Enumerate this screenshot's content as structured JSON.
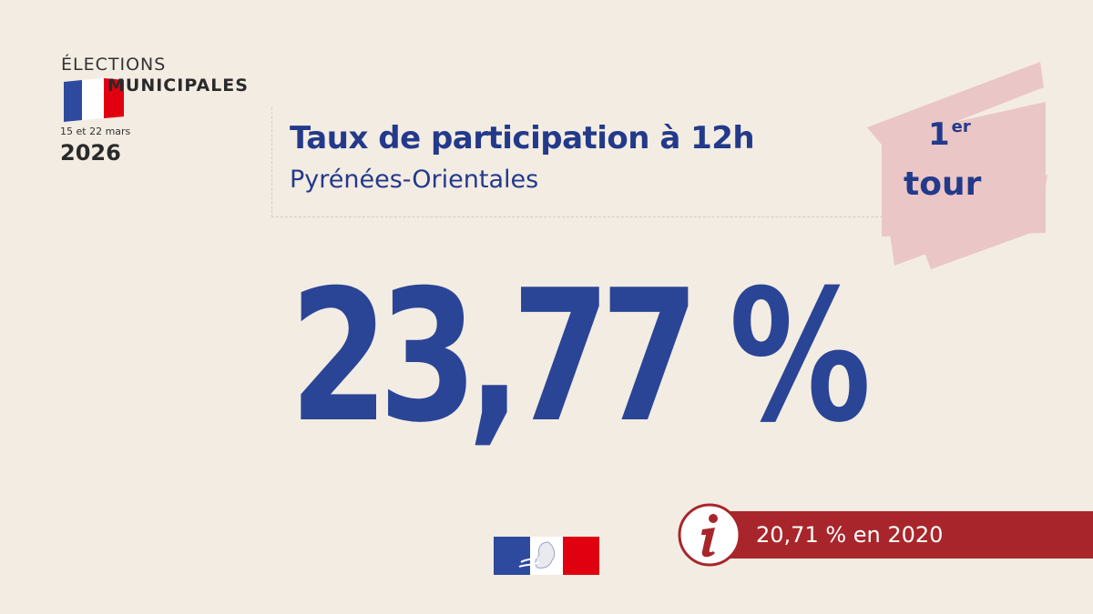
{
  "logo": {
    "line1": "ÉLECTIONS",
    "line2": "MUNICIPALES",
    "dates": "15 et 22 mars",
    "year": "2026",
    "flag_colors": [
      "#2e4a9e",
      "#ffffff",
      "#e1000f"
    ]
  },
  "header": {
    "title": "Taux de participation à 12h",
    "subtitle": "Pyrénées-Orientales"
  },
  "badge": {
    "number": "1",
    "suffix": "er",
    "word": "tour",
    "background": "#ebc6c6"
  },
  "main": {
    "rate": "23,77 %"
  },
  "info": {
    "icon": "info-icon",
    "text": "20,71 % en 2020",
    "color": "#a8262b"
  },
  "footer": {
    "emblem": "marianne-logo-icon"
  },
  "colors": {
    "primary_blue": "#233a8b",
    "background": "#f3ece3"
  }
}
